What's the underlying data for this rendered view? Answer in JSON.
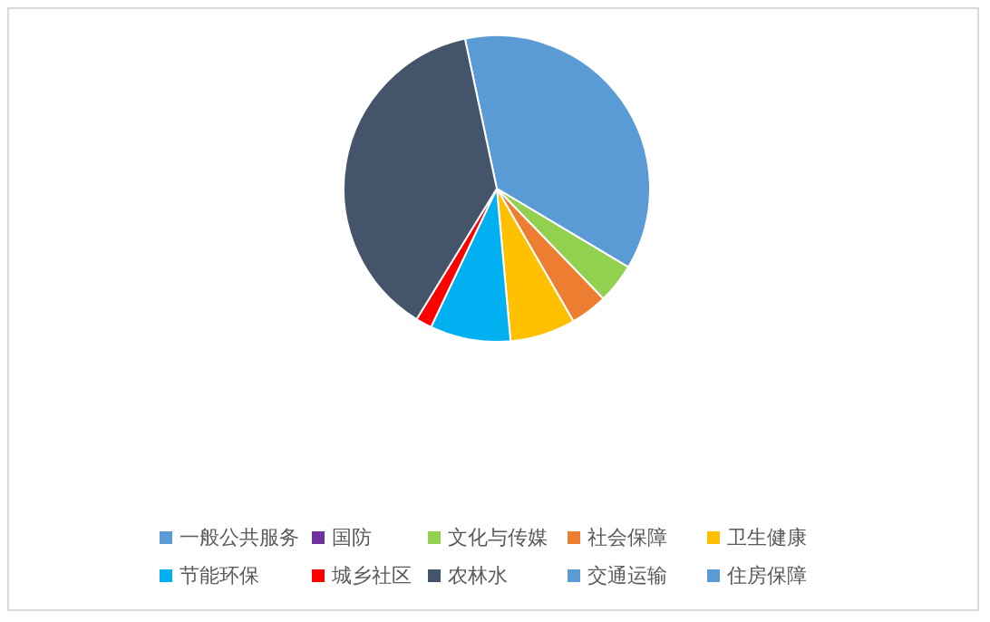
{
  "chart_data": {
    "type": "pie",
    "categories": [
      "一般公共服务",
      "国防",
      "文化与传媒",
      "社会保障",
      "卫生健康",
      "节能环保",
      "城乡社区",
      "农林水",
      "交通运输",
      "住房保障"
    ],
    "values": [
      36.9,
      0,
      4.2,
      3.9,
      6.9,
      8.5,
      1.7,
      37.9,
      0,
      0
    ],
    "colors": [
      "#5b9bd5",
      "#7030a0",
      "#92d050",
      "#ed7d31",
      "#ffc000",
      "#00b0f0",
      "#ff0000",
      "#44546a",
      "#5b9bd5",
      "#5b9bd5"
    ],
    "legend": "bottom"
  }
}
